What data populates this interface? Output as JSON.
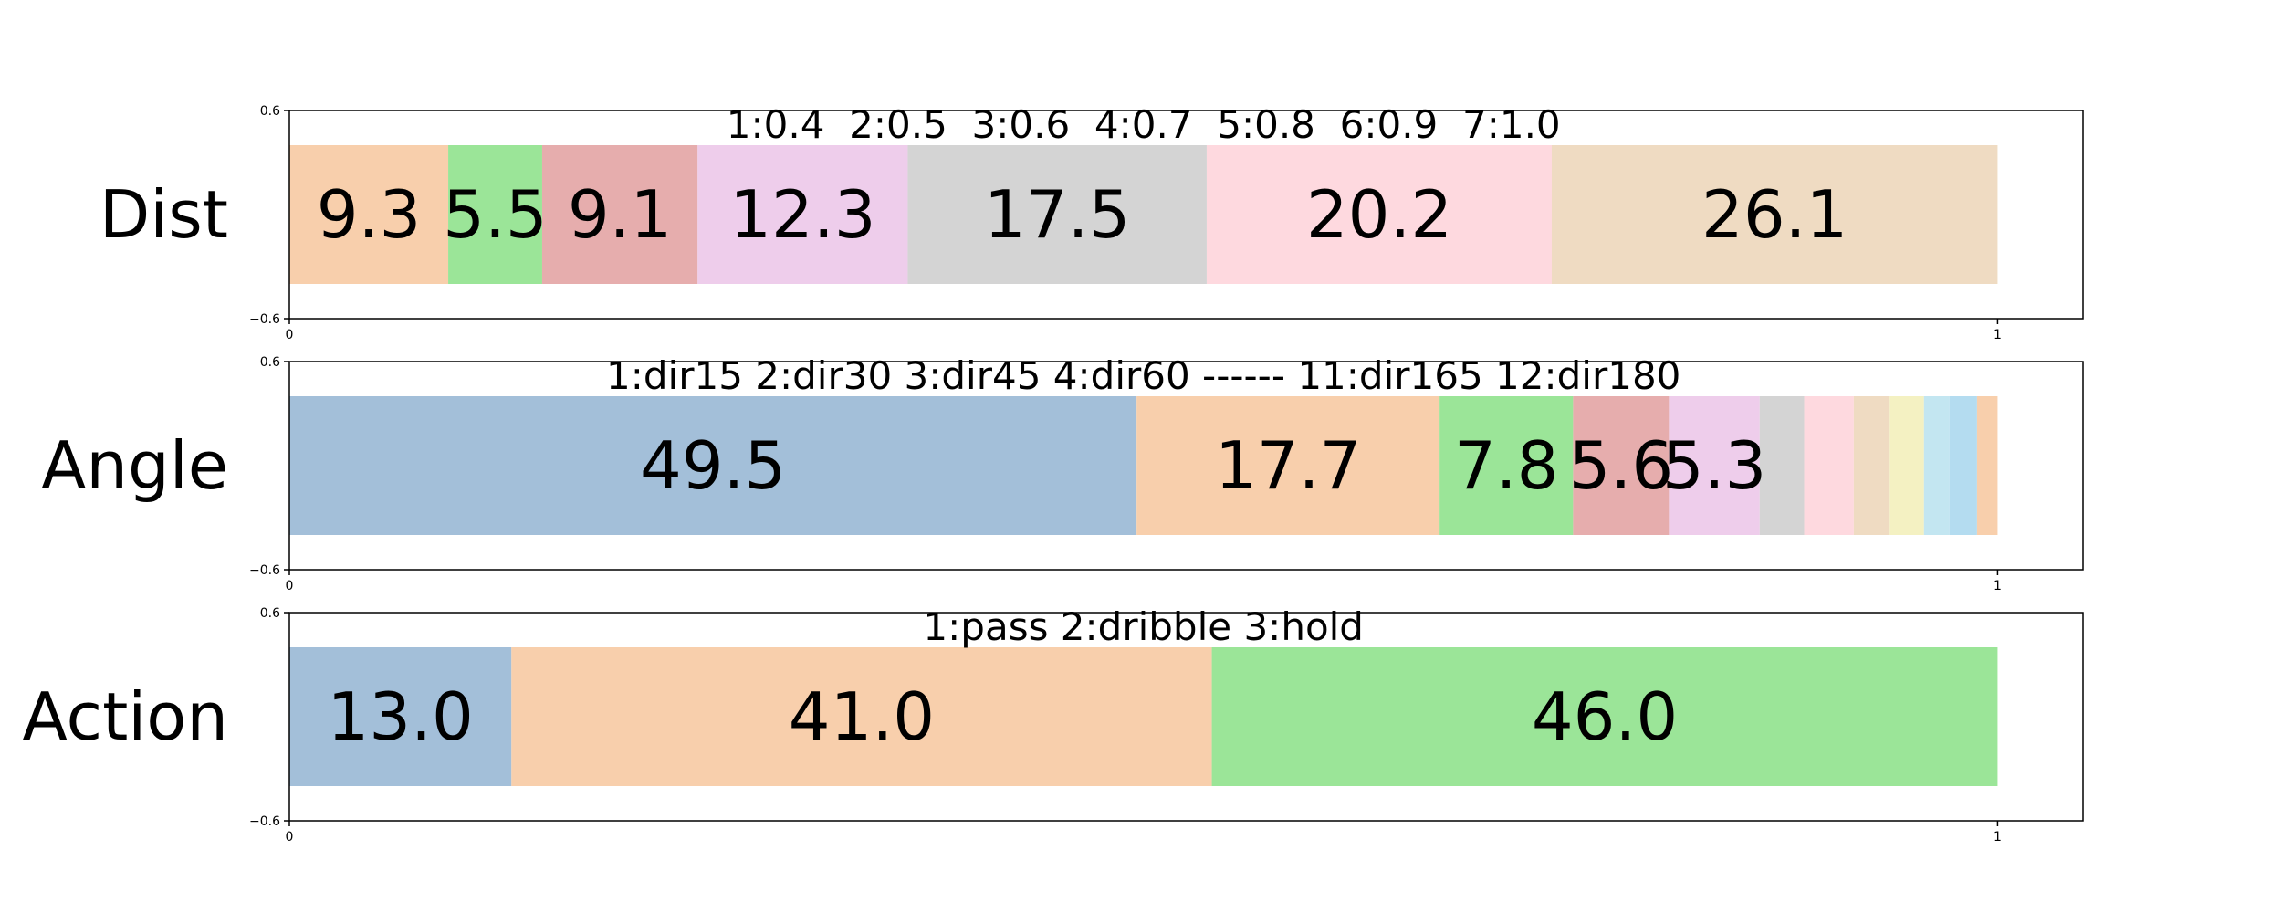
{
  "chart_data": [
    {
      "type": "bar",
      "orientation": "horizontal-stacked",
      "row_label": "Dist",
      "header": "1:0.4  2:0.5  3:0.6  4:0.7  5:0.8  6:0.9  7:1.0",
      "segments": [
        {
          "value": 9.3,
          "label": "9.3",
          "color": "#f8cfac"
        },
        {
          "value": 5.5,
          "label": "5.5",
          "color": "#9be598"
        },
        {
          "value": 9.1,
          "label": "9.1",
          "color": "#e6adad"
        },
        {
          "value": 12.3,
          "label": "12.3",
          "color": "#eecdeb"
        },
        {
          "value": 17.5,
          "label": "17.5",
          "color": "#d4d4d4"
        },
        {
          "value": 20.2,
          "label": "20.2",
          "color": "#fed9df"
        },
        {
          "value": 26.1,
          "label": "26.1",
          "color": "#efdbc2"
        }
      ],
      "xlim": [
        0,
        1.05
      ],
      "ylim": [
        -0.6,
        0.6
      ],
      "xticks": [
        "0",
        "1"
      ],
      "yticks": [
        "0.6",
        "−0.6"
      ]
    },
    {
      "type": "bar",
      "orientation": "horizontal-stacked",
      "row_label": "Angle",
      "header": "1:dir15 2:dir30 3:dir45 4:dir60 ------ 11:dir165 12:dir180",
      "segments": [
        {
          "value": 49.5,
          "label": "49.5",
          "color": "#a3bfd9"
        },
        {
          "value": 17.7,
          "label": "17.7",
          "color": "#f8cfac"
        },
        {
          "value": 7.8,
          "label": "7.8",
          "color": "#9be598"
        },
        {
          "value": 5.6,
          "label": "5.6",
          "color": "#e6adad"
        },
        {
          "value": 5.3,
          "label": "5.3",
          "color": "#eecdeb"
        },
        {
          "value": 2.6,
          "label": "",
          "color": "#d4d4d4"
        },
        {
          "value": 2.9,
          "label": "",
          "color": "#fed9df"
        },
        {
          "value": 2.1,
          "label": "",
          "color": "#efdbc2"
        },
        {
          "value": 2.0,
          "label": "",
          "color": "#f4f1c2"
        },
        {
          "value": 1.5,
          "label": "",
          "color": "#c3e6f1"
        },
        {
          "value": 1.6,
          "label": "",
          "color": "#b4dcf0"
        },
        {
          "value": 1.2,
          "label": "",
          "color": "#f8cfac"
        }
      ],
      "xlim": [
        0,
        1.05
      ],
      "ylim": [
        -0.6,
        0.6
      ],
      "xticks": [
        "0",
        "1"
      ],
      "yticks": [
        "0.6",
        "−0.6"
      ]
    },
    {
      "type": "bar",
      "orientation": "horizontal-stacked",
      "row_label": "Action",
      "header": "1:pass 2:dribble 3:hold",
      "segments": [
        {
          "value": 13.0,
          "label": "13.0",
          "color": "#a3bfd9"
        },
        {
          "value": 41.0,
          "label": "41.0",
          "color": "#f8cfac"
        },
        {
          "value": 46.0,
          "label": "46.0",
          "color": "#9be598"
        }
      ],
      "xlim": [
        0,
        1.05
      ],
      "ylim": [
        -0.6,
        0.6
      ],
      "xticks": [
        "0",
        "1"
      ],
      "yticks": [
        "0.6",
        "−0.6"
      ]
    }
  ]
}
